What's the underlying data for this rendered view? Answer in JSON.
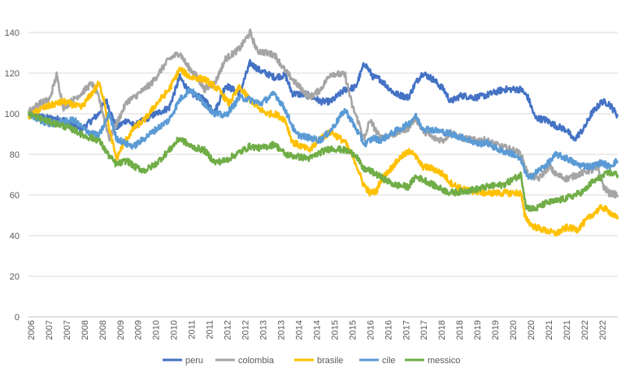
{
  "chart_data": {
    "type": "line",
    "title": "",
    "xlabel": "",
    "ylabel": "",
    "ylim": [
      0,
      140
    ],
    "y_ticks": [
      "0",
      "20",
      "40",
      "60",
      "80",
      "100",
      "120",
      "140"
    ],
    "x_tick_labels": [
      "2006",
      "2007",
      "2007",
      "2008",
      "2008",
      "2009",
      "2009",
      "2010",
      "2010",
      "2011",
      "2011",
      "2012",
      "2012",
      "2013",
      "2013",
      "2014",
      "2014",
      "2015",
      "2015",
      "2016",
      "2016",
      "2017",
      "2017",
      "2018",
      "2018",
      "2019",
      "2019",
      "2020",
      "2020",
      "2021",
      "2021",
      "2022",
      "2022"
    ],
    "x_range": [
      2006.0,
      2022.75
    ],
    "grid": "horizontal",
    "legend_position": "bottom",
    "series": [
      {
        "name": "peru",
        "color": "#4472C4",
        "points": [
          [
            2006.0,
            100
          ],
          [
            2006.5,
            98
          ],
          [
            2007.0,
            97
          ],
          [
            2007.5,
            92
          ],
          [
            2008.0,
            100
          ],
          [
            2008.2,
            107
          ],
          [
            2008.5,
            93
          ],
          [
            2008.8,
            97
          ],
          [
            2009.0,
            94
          ],
          [
            2009.5,
            99
          ],
          [
            2010.0,
            103
          ],
          [
            2010.3,
            118
          ],
          [
            2010.6,
            110
          ],
          [
            2011.0,
            107
          ],
          [
            2011.3,
            101
          ],
          [
            2011.6,
            114
          ],
          [
            2012.0,
            110
          ],
          [
            2012.3,
            125
          ],
          [
            2012.6,
            121
          ],
          [
            2013.0,
            118
          ],
          [
            2013.3,
            119
          ],
          [
            2013.5,
            110
          ],
          [
            2014.0,
            109
          ],
          [
            2014.3,
            106
          ],
          [
            2014.6,
            106
          ],
          [
            2015.0,
            112
          ],
          [
            2015.3,
            113
          ],
          [
            2015.55,
            125
          ],
          [
            2015.8,
            118
          ],
          [
            2016.0,
            117
          ],
          [
            2016.4,
            110
          ],
          [
            2016.8,
            108
          ],
          [
            2017.0,
            115
          ],
          [
            2017.2,
            120
          ],
          [
            2017.5,
            117
          ],
          [
            2017.8,
            112
          ],
          [
            2018.0,
            106
          ],
          [
            2018.3,
            109
          ],
          [
            2018.7,
            108
          ],
          [
            2019.0,
            109
          ],
          [
            2019.5,
            112
          ],
          [
            2020.0,
            112
          ],
          [
            2020.2,
            108
          ],
          [
            2020.4,
            98
          ],
          [
            2020.7,
            97
          ],
          [
            2021.0,
            94
          ],
          [
            2021.3,
            92
          ],
          [
            2021.5,
            87
          ],
          [
            2021.8,
            93
          ],
          [
            2022.0,
            100
          ],
          [
            2022.3,
            106
          ],
          [
            2022.5,
            105
          ],
          [
            2022.75,
            99
          ]
        ]
      },
      {
        "name": "colombia",
        "color": "#A5A5A5",
        "points": [
          [
            2006.0,
            101
          ],
          [
            2006.3,
            105
          ],
          [
            2006.6,
            107
          ],
          [
            2006.8,
            119
          ],
          [
            2007.0,
            103
          ],
          [
            2007.5,
            110
          ],
          [
            2007.8,
            115
          ],
          [
            2008.0,
            108
          ],
          [
            2008.3,
            88
          ],
          [
            2008.5,
            95
          ],
          [
            2008.8,
            106
          ],
          [
            2009.0,
            108
          ],
          [
            2009.5,
            115
          ],
          [
            2010.0,
            127
          ],
          [
            2010.3,
            130
          ],
          [
            2010.5,
            124
          ],
          [
            2010.8,
            118
          ],
          [
            2011.0,
            112
          ],
          [
            2011.3,
            115
          ],
          [
            2011.6,
            127
          ],
          [
            2012.0,
            132
          ],
          [
            2012.3,
            140
          ],
          [
            2012.5,
            131
          ],
          [
            2013.0,
            129
          ],
          [
            2013.3,
            121
          ],
          [
            2013.6,
            115
          ],
          [
            2014.0,
            108
          ],
          [
            2014.3,
            112
          ],
          [
            2014.6,
            120
          ],
          [
            2015.0,
            119
          ],
          [
            2015.2,
            104
          ],
          [
            2015.4,
            95
          ],
          [
            2015.55,
            87
          ],
          [
            2015.7,
            97
          ],
          [
            2016.0,
            88
          ],
          [
            2016.4,
            90
          ],
          [
            2016.8,
            93
          ],
          [
            2017.0,
            98
          ],
          [
            2017.2,
            92
          ],
          [
            2017.5,
            88
          ],
          [
            2017.8,
            87
          ],
          [
            2018.0,
            91
          ],
          [
            2018.3,
            88
          ],
          [
            2018.7,
            87
          ],
          [
            2019.0,
            87
          ],
          [
            2019.4,
            84
          ],
          [
            2019.8,
            82
          ],
          [
            2020.0,
            80
          ],
          [
            2020.2,
            70
          ],
          [
            2020.5,
            68
          ],
          [
            2020.8,
            74
          ],
          [
            2021.0,
            70
          ],
          [
            2021.3,
            68
          ],
          [
            2021.6,
            70
          ],
          [
            2021.9,
            72
          ],
          [
            2022.0,
            72
          ],
          [
            2022.2,
            73
          ],
          [
            2022.35,
            64
          ],
          [
            2022.5,
            61
          ],
          [
            2022.75,
            60
          ]
        ]
      },
      {
        "name": "brasile",
        "color": "#FFC000",
        "points": [
          [
            2006.0,
            98
          ],
          [
            2006.3,
            102
          ],
          [
            2006.6,
            104
          ],
          [
            2007.0,
            106
          ],
          [
            2007.5,
            103
          ],
          [
            2007.8,
            110
          ],
          [
            2008.0,
            115
          ],
          [
            2008.15,
            107
          ],
          [
            2008.3,
            92
          ],
          [
            2008.5,
            78
          ],
          [
            2008.7,
            85
          ],
          [
            2009.0,
            93
          ],
          [
            2009.3,
            97
          ],
          [
            2009.6,
            104
          ],
          [
            2010.0,
            112
          ],
          [
            2010.3,
            122
          ],
          [
            2010.6,
            118
          ],
          [
            2011.0,
            117
          ],
          [
            2011.4,
            112
          ],
          [
            2011.7,
            105
          ],
          [
            2012.0,
            113
          ],
          [
            2012.3,
            107
          ],
          [
            2012.5,
            103
          ],
          [
            2012.8,
            100
          ],
          [
            2013.0,
            100
          ],
          [
            2013.3,
            97
          ],
          [
            2013.5,
            86
          ],
          [
            2014.0,
            82
          ],
          [
            2014.3,
            88
          ],
          [
            2014.6,
            91
          ],
          [
            2015.0,
            86
          ],
          [
            2015.3,
            76
          ],
          [
            2015.5,
            66
          ],
          [
            2015.7,
            61
          ],
          [
            2015.9,
            62
          ],
          [
            2016.0,
            67
          ],
          [
            2016.3,
            73
          ],
          [
            2016.6,
            79
          ],
          [
            2016.9,
            82
          ],
          [
            2017.0,
            79
          ],
          [
            2017.2,
            74
          ],
          [
            2017.5,
            73
          ],
          [
            2017.8,
            70
          ],
          [
            2018.0,
            66
          ],
          [
            2018.3,
            63
          ],
          [
            2018.6,
            62
          ],
          [
            2019.0,
            61
          ],
          [
            2019.5,
            61
          ],
          [
            2020.0,
            61
          ],
          [
            2020.1,
            50
          ],
          [
            2020.3,
            45
          ],
          [
            2020.6,
            43
          ],
          [
            2021.0,
            41
          ],
          [
            2021.3,
            44
          ],
          [
            2021.6,
            43
          ],
          [
            2022.0,
            50
          ],
          [
            2022.3,
            54
          ],
          [
            2022.5,
            52
          ],
          [
            2022.75,
            48
          ]
        ]
      },
      {
        "name": "cile",
        "color": "#5B9BD5",
        "points": [
          [
            2006.0,
            100
          ],
          [
            2006.3,
            97
          ],
          [
            2006.6,
            95
          ],
          [
            2007.0,
            96
          ],
          [
            2007.3,
            97
          ],
          [
            2007.6,
            92
          ],
          [
            2008.0,
            89
          ],
          [
            2008.3,
            100
          ],
          [
            2008.5,
            88
          ],
          [
            2008.8,
            85
          ],
          [
            2009.0,
            84
          ],
          [
            2009.3,
            88
          ],
          [
            2009.6,
            92
          ],
          [
            2010.0,
            97
          ],
          [
            2010.3,
            107
          ],
          [
            2010.6,
            112
          ],
          [
            2011.0,
            105
          ],
          [
            2011.3,
            100
          ],
          [
            2011.6,
            99
          ],
          [
            2012.0,
            108
          ],
          [
            2012.3,
            107
          ],
          [
            2012.6,
            105
          ],
          [
            2013.0,
            110
          ],
          [
            2013.3,
            102
          ],
          [
            2013.6,
            90
          ],
          [
            2014.0,
            88
          ],
          [
            2014.3,
            87
          ],
          [
            2014.6,
            92
          ],
          [
            2015.0,
            102
          ],
          [
            2015.3,
            93
          ],
          [
            2015.55,
            85
          ],
          [
            2015.8,
            88
          ],
          [
            2016.0,
            87
          ],
          [
            2016.4,
            91
          ],
          [
            2016.8,
            95
          ],
          [
            2017.0,
            99
          ],
          [
            2017.2,
            93
          ],
          [
            2017.5,
            92
          ],
          [
            2017.8,
            91
          ],
          [
            2018.0,
            90
          ],
          [
            2018.4,
            88
          ],
          [
            2018.8,
            85
          ],
          [
            2019.0,
            86
          ],
          [
            2019.4,
            82
          ],
          [
            2019.8,
            80
          ],
          [
            2020.0,
            77
          ],
          [
            2020.2,
            68
          ],
          [
            2020.5,
            72
          ],
          [
            2020.8,
            76
          ],
          [
            2021.0,
            80
          ],
          [
            2021.3,
            78
          ],
          [
            2021.6,
            75
          ],
          [
            2022.0,
            74
          ],
          [
            2022.3,
            76
          ],
          [
            2022.5,
            74
          ],
          [
            2022.75,
            77
          ]
        ]
      },
      {
        "name": "messico",
        "color": "#70AD47",
        "points": [
          [
            2006.0,
            100
          ],
          [
            2006.3,
            98
          ],
          [
            2006.6,
            96
          ],
          [
            2007.0,
            94
          ],
          [
            2007.3,
            92
          ],
          [
            2007.6,
            89
          ],
          [
            2008.0,
            87
          ],
          [
            2008.3,
            79
          ],
          [
            2008.5,
            75
          ],
          [
            2008.8,
            77
          ],
          [
            2009.0,
            74
          ],
          [
            2009.3,
            72
          ],
          [
            2009.6,
            75
          ],
          [
            2010.0,
            82
          ],
          [
            2010.3,
            88
          ],
          [
            2010.6,
            84
          ],
          [
            2011.0,
            82
          ],
          [
            2011.3,
            76
          ],
          [
            2011.6,
            77
          ],
          [
            2012.0,
            81
          ],
          [
            2012.3,
            84
          ],
          [
            2012.6,
            83
          ],
          [
            2013.0,
            85
          ],
          [
            2013.3,
            80
          ],
          [
            2013.6,
            79
          ],
          [
            2014.0,
            78
          ],
          [
            2014.3,
            81
          ],
          [
            2014.6,
            83
          ],
          [
            2015.0,
            82
          ],
          [
            2015.3,
            80
          ],
          [
            2015.5,
            73
          ],
          [
            2015.7,
            72
          ],
          [
            2016.0,
            69
          ],
          [
            2016.4,
            65
          ],
          [
            2016.8,
            64
          ],
          [
            2017.0,
            69
          ],
          [
            2017.3,
            67
          ],
          [
            2017.6,
            64
          ],
          [
            2018.0,
            61
          ],
          [
            2018.4,
            62
          ],
          [
            2018.8,
            63
          ],
          [
            2019.0,
            64
          ],
          [
            2019.5,
            65
          ],
          [
            2020.0,
            70
          ],
          [
            2020.15,
            54
          ],
          [
            2020.4,
            53
          ],
          [
            2020.7,
            56
          ],
          [
            2021.0,
            57
          ],
          [
            2021.4,
            59
          ],
          [
            2021.8,
            62
          ],
          [
            2022.0,
            66
          ],
          [
            2022.3,
            69
          ],
          [
            2022.5,
            71
          ],
          [
            2022.75,
            70
          ]
        ]
      }
    ]
  }
}
